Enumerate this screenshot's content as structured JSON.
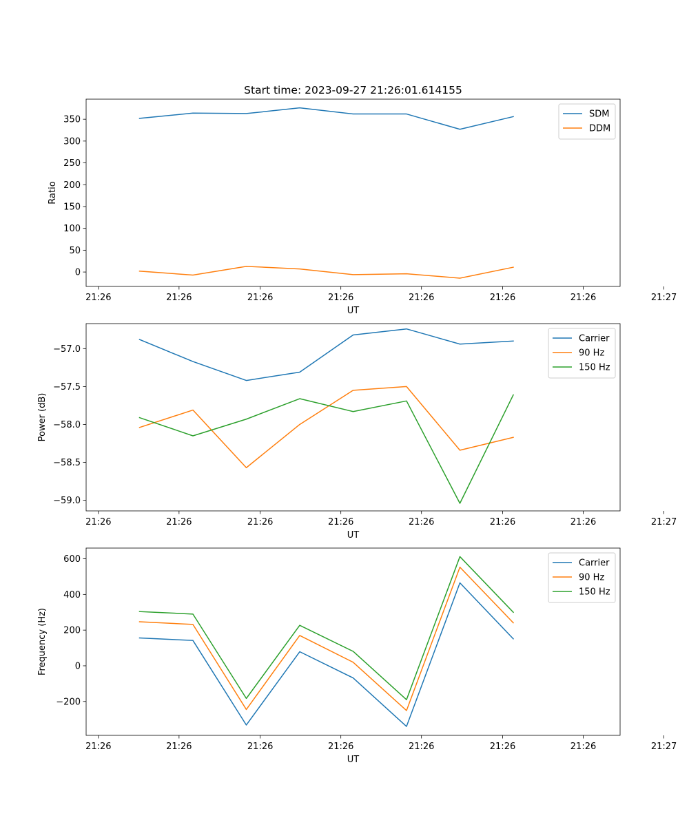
{
  "chart_data": [
    {
      "type": "line",
      "title": "Start time: 2023-09-27 21:26:01.614155",
      "xlabel": "UT",
      "ylabel": "Ratio",
      "x": [
        1,
        2,
        3,
        4,
        5,
        6,
        7,
        8
      ],
      "xlim": [
        0,
        10
      ],
      "xticks": [
        0.23,
        1.74,
        3.26,
        4.77,
        6.28,
        7.8,
        9.31,
        10.82
      ],
      "xticklabels": [
        "21:26",
        "21:26",
        "21:26",
        "21:26",
        "21:26",
        "21:26",
        "21:26",
        "21:27"
      ],
      "ylim": [
        -33,
        396
      ],
      "yticks": [
        0,
        50,
        100,
        150,
        200,
        250,
        300,
        350
      ],
      "yticklabels": [
        "0",
        "50",
        "100",
        "150",
        "200",
        "250",
        "300",
        "350"
      ],
      "legend_loc": "upper right",
      "series": [
        {
          "name": "SDM",
          "color": "#1f77b4",
          "values": [
            352,
            364,
            363,
            376,
            362,
            362,
            327,
            356
          ]
        },
        {
          "name": "DDM",
          "color": "#ff7f0e",
          "values": [
            2,
            -7,
            13,
            7,
            -6,
            -4,
            -14,
            11
          ]
        }
      ]
    },
    {
      "type": "line",
      "title": "",
      "xlabel": "UT",
      "ylabel": "Power (dB)",
      "x": [
        1,
        2,
        3,
        4,
        5,
        6,
        7,
        8
      ],
      "xlim": [
        0,
        10
      ],
      "xticks": [
        0.23,
        1.74,
        3.26,
        4.77,
        6.28,
        7.8,
        9.31,
        10.82
      ],
      "xticklabels": [
        "21:26",
        "21:26",
        "21:26",
        "21:26",
        "21:26",
        "21:26",
        "21:26",
        "21:27"
      ],
      "ylim": [
        -59.14,
        -56.67
      ],
      "yticks": [
        -59.0,
        -58.5,
        -58.0,
        -57.5,
        -57.0
      ],
      "yticklabels": [
        "−59.0",
        "−58.5",
        "−58.0",
        "−57.5",
        "−57.0"
      ],
      "legend_loc": "upper right",
      "series": [
        {
          "name": "Carrier",
          "color": "#1f77b4",
          "values": [
            -56.88,
            -57.17,
            -57.42,
            -57.31,
            -56.82,
            -56.74,
            -56.94,
            -56.9
          ]
        },
        {
          "name": "90 Hz",
          "color": "#ff7f0e",
          "values": [
            -58.04,
            -57.81,
            -58.57,
            -58.0,
            -57.55,
            -57.5,
            -58.34,
            -58.17
          ]
        },
        {
          "name": "150 Hz",
          "color": "#2ca02c",
          "values": [
            -57.91,
            -58.15,
            -57.93,
            -57.66,
            -57.83,
            -57.69,
            -59.04,
            -57.61
          ]
        }
      ]
    },
    {
      "type": "line",
      "title": "",
      "xlabel": "UT",
      "ylabel": "Frequency (Hz)",
      "x": [
        1,
        2,
        3,
        4,
        5,
        6,
        7,
        8
      ],
      "xlim": [
        0,
        10
      ],
      "xticks": [
        0.23,
        1.74,
        3.26,
        4.77,
        6.28,
        7.8,
        9.31,
        10.82
      ],
      "xticklabels": [
        "21:26",
        "21:26",
        "21:26",
        "21:26",
        "21:26",
        "21:26",
        "21:26",
        "21:27"
      ],
      "ylim": [
        -390,
        660
      ],
      "yticks": [
        -200,
        0,
        200,
        400,
        600
      ],
      "yticklabels": [
        "−200",
        "0",
        "200",
        "400",
        "600"
      ],
      "legend_loc": "upper right",
      "series": [
        {
          "name": "Carrier",
          "color": "#1f77b4",
          "values": [
            156,
            142,
            -332,
            79,
            -68,
            -340,
            465,
            151
          ]
        },
        {
          "name": "90 Hz",
          "color": "#ff7f0e",
          "values": [
            247,
            232,
            -245,
            170,
            20,
            -251,
            553,
            241
          ]
        },
        {
          "name": "150 Hz",
          "color": "#2ca02c",
          "values": [
            304,
            290,
            -183,
            227,
            81,
            -190,
            612,
            300
          ]
        }
      ]
    }
  ]
}
